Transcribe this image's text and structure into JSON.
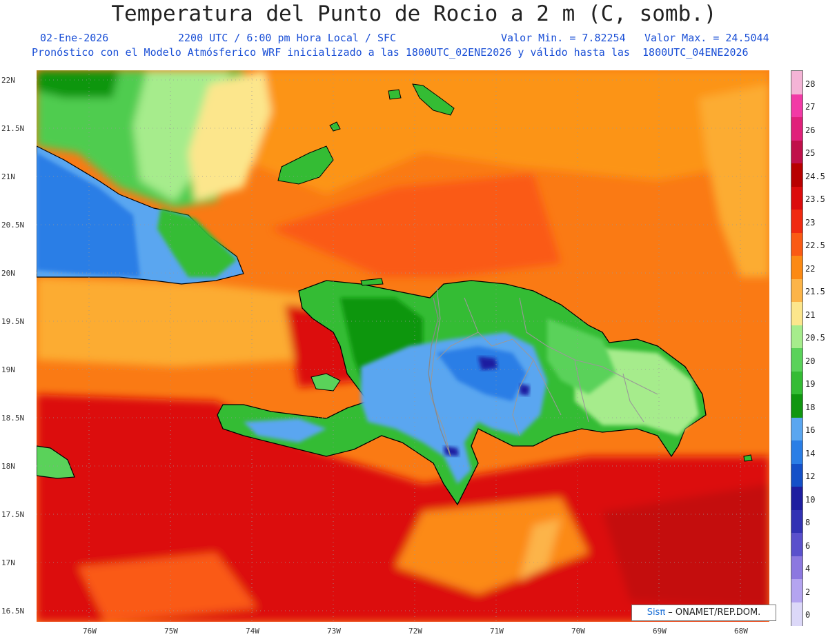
{
  "header": {
    "title": "Temperatura del Punto de Rocio a 2 m (C, somb.)",
    "date": "02-Ene-2026",
    "time_info": "2200 UTC / 6:00 pm Hora Local / SFC",
    "min_value": "Valor Min. = 7.82254",
    "max_value": "Valor Max. = 24.5044",
    "model_info": "Pronóstico con el Modelo Atmósferico WRF inicializado a las 1800UTC_02ENE2026 y válido hasta las  1800UTC_04ENE2026"
  },
  "axes": {
    "lat_labels": [
      "22N",
      "21.5N",
      "21N",
      "20.5N",
      "20N",
      "19.5N",
      "19N",
      "18.5N",
      "18N",
      "17.5N",
      "17N",
      "16.5N"
    ],
    "lon_labels": [
      "76W",
      "75W",
      "74W",
      "73W",
      "72W",
      "71W",
      "70W",
      "69W",
      "68W"
    ]
  },
  "colorbar": {
    "levels": [
      {
        "label": "28",
        "color": "#f4b4d6"
      },
      {
        "label": "27",
        "color": "#f23aa6"
      },
      {
        "label": "26",
        "color": "#e0207a"
      },
      {
        "label": "25",
        "color": "#c0104a"
      },
      {
        "label": "24.5",
        "color": "#b80000"
      },
      {
        "label": "23.5",
        "color": "#dc0c0c"
      },
      {
        "label": "23",
        "color": "#f02a10"
      },
      {
        "label": "22.5",
        "color": "#fa5a14"
      },
      {
        "label": "22",
        "color": "#fc8a14"
      },
      {
        "label": "21.5",
        "color": "#fcb448"
      },
      {
        "label": "21",
        "color": "#fce68c"
      },
      {
        "label": "20.5",
        "color": "#a6ec8c"
      },
      {
        "label": "20",
        "color": "#5ad25a"
      },
      {
        "label": "19",
        "color": "#34bc34"
      },
      {
        "label": "18",
        "color": "#109610"
      },
      {
        "label": "16",
        "color": "#5aa6f0"
      },
      {
        "label": "14",
        "color": "#2a7ee6"
      },
      {
        "label": "12",
        "color": "#1450c8"
      },
      {
        "label": "10",
        "color": "#1e1ea0"
      },
      {
        "label": "8",
        "color": "#3232b4"
      },
      {
        "label": "6",
        "color": "#5a50cc"
      },
      {
        "label": "4",
        "color": "#8c78e0"
      },
      {
        "label": "2",
        "color": "#b4a4f0"
      },
      {
        "label": "0",
        "color": "#dcd8f8"
      }
    ],
    "bottom_label": "0"
  },
  "credit": {
    "sis": "Sisπ",
    "text": " – ONAMET/REP.DOM."
  }
}
